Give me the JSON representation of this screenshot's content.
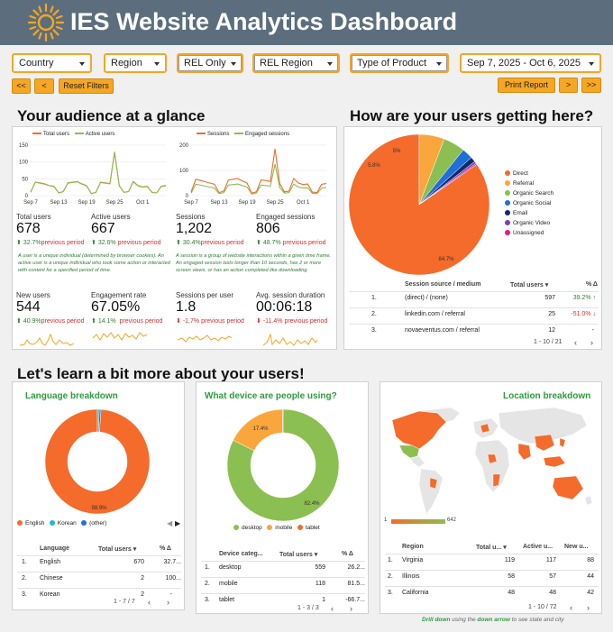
{
  "header": {
    "title": "IES Website Analytics Dashboard"
  },
  "filters": {
    "country": "Country",
    "region": "Region",
    "rel_only": "REL Only",
    "rel_region": "REL Region",
    "product_type": "Type of Product",
    "date_range": "Sep 7, 2025 - Oct 6, 2025",
    "prev_page": "<<",
    "prev": "<",
    "reset": "Reset Filters",
    "print": "Print Report",
    "next": ">",
    "next_page": ">>"
  },
  "audience": {
    "title": "Your audience at a glance",
    "chart1": {
      "legend": [
        "Total users",
        "Active users"
      ],
      "y_ticks": [
        "150",
        "100",
        "50",
        "0"
      ],
      "x_ticks": [
        "Sep 7",
        "Sep 13",
        "Sep 19",
        "Sep 25",
        "Oct 1"
      ]
    },
    "chart2": {
      "legend": [
        "Sessions",
        "Engaged sessions"
      ],
      "y_ticks": [
        "200",
        "100",
        "0"
      ],
      "x_ticks": [
        "Sep 7",
        "Sep 13",
        "Sep 19",
        "Sep 25",
        "Oct 1"
      ]
    },
    "metrics": [
      {
        "label": "Total users",
        "value": "678",
        "change": "32.7%",
        "dir": "up",
        "suffix": "previous period"
      },
      {
        "label": "Active users",
        "value": "667",
        "change": "32.6%",
        "dir": "up",
        "suffix": "previous period"
      },
      {
        "label": "Sessions",
        "value": "1,202",
        "change": "30.4%",
        "dir": "up",
        "suffix": "previous period"
      },
      {
        "label": "Engaged sessions",
        "value": "806",
        "change": "48.7%",
        "dir": "up",
        "suffix": "previous period"
      },
      {
        "label": "New users",
        "value": "544",
        "change": "40.9%",
        "dir": "up",
        "suffix": "previous period"
      },
      {
        "label": "Engagement rate",
        "value": "67.05%",
        "change": "14.1%",
        "dir": "up",
        "suffix": "previous period"
      },
      {
        "label": "Sessions per user",
        "value": "1.8",
        "change": "-1.7%",
        "dir": "down",
        "suffix": "previous period"
      },
      {
        "label": "Avg. session duration",
        "value": "00:06:18",
        "change": "-11.4%",
        "dir": "down",
        "suffix": "previous period"
      }
    ],
    "note_users": "A user is a unique individual (determined by browser cookies). An active user is a unique individual who took some action or interacted with content for a specified period of time.",
    "note_sessions": "A session is a group of website interactions within a given time frame. An engaged session lasts longer than 10 seconds, has 2 or more screen views, or has an action completed like downloading."
  },
  "traffic": {
    "title": "How are your users getting here?",
    "slices": [
      {
        "name": "Direct",
        "pct": 84.7,
        "color": "#f46b2b"
      },
      {
        "name": "Referral",
        "pct": 5.8,
        "color": "#fba63c"
      },
      {
        "name": "Organic Search",
        "pct": 5.0,
        "color": "#8bbf52"
      },
      {
        "name": "Organic Social",
        "pct": 2.5,
        "color": "#1e6fd9"
      },
      {
        "name": "Email",
        "pct": 1.2,
        "color": "#0f2b6e"
      },
      {
        "name": "Organic Video",
        "pct": 0.5,
        "color": "#7b3fb8"
      },
      {
        "name": "Unassigned",
        "pct": 0.3,
        "color": "#e6197c"
      }
    ],
    "slice_labels": [
      "84.7%",
      "5.8%",
      "5%"
    ],
    "table": {
      "headers": [
        "Session source / medium",
        "Total users ▾",
        "% Δ"
      ],
      "rows": [
        {
          "n": "1.",
          "src": "(direct) / (none)",
          "users": "597",
          "pct": "39.2% ↑"
        },
        {
          "n": "2.",
          "src": "linkedin.com / referral",
          "users": "25",
          "pct": "-51.0% ↓"
        },
        {
          "n": "3.",
          "src": "novaeventus.com / referral",
          "users": "12",
          "pct": "-"
        }
      ],
      "pagination": "1 - 10 / 21"
    }
  },
  "learn": {
    "title": "Let's learn a bit more about your users!"
  },
  "language": {
    "title": "Language breakdown",
    "slices": [
      {
        "name": "English",
        "pct": 98.9,
        "color": "#f46b2b"
      },
      {
        "name": "Korean",
        "pct": 0.6,
        "color": "#1eb8c9"
      },
      {
        "name": "(other)",
        "pct": 0.5,
        "color": "#1e6fd9"
      }
    ],
    "center_label": "98.9%",
    "table": {
      "headers": [
        "Language",
        "Total users ▾",
        "% Δ"
      ],
      "rows": [
        {
          "n": "1.",
          "name": "English",
          "users": "670",
          "pct": "32.7..."
        },
        {
          "n": "2.",
          "name": "Chinese",
          "users": "2",
          "pct": "100..."
        },
        {
          "n": "3.",
          "name": "Korean",
          "users": "2",
          "pct": "-"
        }
      ],
      "pagination": "1 - 7 / 7"
    }
  },
  "device": {
    "title": "What device are people using?",
    "slices": [
      {
        "name": "desktop",
        "pct": 82.4,
        "color": "#8bbf52"
      },
      {
        "name": "mobile",
        "pct": 17.4,
        "color": "#fba63c"
      },
      {
        "name": "tablet",
        "pct": 0.2,
        "color": "#f46b2b"
      }
    ],
    "labels": [
      "82.4%",
      "17.4%"
    ],
    "table": {
      "headers": [
        "Device categ...",
        "Total users ▾",
        "% Δ"
      ],
      "rows": [
        {
          "n": "1.",
          "name": "desktop",
          "users": "559",
          "pct": "26.2..."
        },
        {
          "n": "2.",
          "name": "mobile",
          "users": "118",
          "pct": "81.5..."
        },
        {
          "n": "3.",
          "name": "tablet",
          "users": "1",
          "pct": "-66.7..."
        }
      ],
      "pagination": "1 - 3 / 3"
    }
  },
  "location": {
    "title": "Location breakdown",
    "scale_min": "1",
    "scale_max": "642",
    "table": {
      "headers": [
        "Region",
        "Total u... ▾",
        "Active u...",
        "New u..."
      ],
      "rows": [
        {
          "n": "1.",
          "name": "Virginia",
          "total": "119",
          "active": "117",
          "new": "88"
        },
        {
          "n": "2.",
          "name": "Illinois",
          "total": "58",
          "active": "57",
          "new": "44"
        },
        {
          "n": "3.",
          "name": "California",
          "total": "48",
          "active": "48",
          "new": "42"
        }
      ],
      "pagination": "1 - 10 / 72"
    },
    "footer_bold1": "Drill down",
    "footer_mid": " using the ",
    "footer_bold2": "down arrow",
    "footer_end": " to see state and city"
  },
  "chart_data": [
    {
      "type": "line",
      "x": [
        "Sep 7",
        "Sep 8",
        "Sep 9",
        "Sep 10",
        "Sep 11",
        "Sep 12",
        "Sep 13",
        "Sep 14",
        "Sep 15",
        "Sep 16",
        "Sep 17",
        "Sep 18",
        "Sep 19",
        "Sep 20",
        "Sep 21",
        "Sep 22",
        "Sep 23",
        "Sep 24",
        "Sep 25",
        "Sep 26",
        "Sep 27",
        "Sep 28",
        "Sep 29",
        "Sep 30",
        "Oct 1",
        "Oct 2",
        "Oct 3",
        "Oct 4",
        "Oct 5",
        "Oct 6"
      ],
      "series": [
        {
          "name": "Total users",
          "values": [
            10,
            40,
            38,
            35,
            30,
            28,
            8,
            12,
            38,
            40,
            42,
            35,
            30,
            6,
            10,
            40,
            38,
            36,
            130,
            30,
            10,
            12,
            42,
            30,
            26,
            28,
            10,
            8,
            28,
            30
          ]
        },
        {
          "name": "Active users",
          "values": [
            10,
            40,
            37,
            34,
            30,
            27,
            8,
            12,
            37,
            39,
            41,
            34,
            29,
            6,
            10,
            39,
            37,
            35,
            128,
            29,
            10,
            12,
            41,
            29,
            25,
            27,
            10,
            8,
            27,
            29
          ]
        }
      ],
      "ylim": [
        0,
        150
      ]
    },
    {
      "type": "line",
      "x": [
        "Sep 7",
        "Sep 8",
        "Sep 9",
        "Sep 10",
        "Sep 11",
        "Sep 12",
        "Sep 13",
        "Sep 14",
        "Sep 15",
        "Sep 16",
        "Sep 17",
        "Sep 18",
        "Sep 19",
        "Sep 20",
        "Sep 21",
        "Sep 22",
        "Sep 23",
        "Sep 24",
        "Sep 25",
        "Sep 26",
        "Sep 27",
        "Sep 28",
        "Sep 29",
        "Sep 30",
        "Oct 1",
        "Oct 2",
        "Oct 3",
        "Oct 4",
        "Oct 5",
        "Oct 6"
      ],
      "series": [
        {
          "name": "Sessions",
          "values": [
            15,
            65,
            60,
            55,
            50,
            45,
            12,
            18,
            62,
            65,
            68,
            58,
            50,
            10,
            15,
            62,
            60,
            56,
            185,
            48,
            15,
            18,
            68,
            50,
            44,
            46,
            14,
            12,
            45,
            48
          ]
        },
        {
          "name": "Engaged sessions",
          "values": [
            10,
            45,
            42,
            38,
            34,
            30,
            8,
            12,
            42,
            44,
            46,
            40,
            34,
            6,
            10,
            42,
            40,
            38,
            125,
            32,
            10,
            12,
            46,
            34,
            30,
            31,
            9,
            8,
            30,
            32
          ]
        }
      ],
      "ylim": [
        0,
        200
      ]
    },
    {
      "type": "pie",
      "categories": [
        "Direct",
        "Referral",
        "Organic Search",
        "Organic Social",
        "Email",
        "Organic Video",
        "Unassigned"
      ],
      "values": [
        84.7,
        5.8,
        5.0,
        2.5,
        1.2,
        0.5,
        0.3
      ]
    },
    {
      "type": "pie",
      "categories": [
        "English",
        "Korean",
        "(other)"
      ],
      "values": [
        98.9,
        0.6,
        0.5
      ]
    },
    {
      "type": "pie",
      "categories": [
        "desktop",
        "mobile",
        "tablet"
      ],
      "values": [
        82.4,
        17.4,
        0.2
      ]
    }
  ]
}
